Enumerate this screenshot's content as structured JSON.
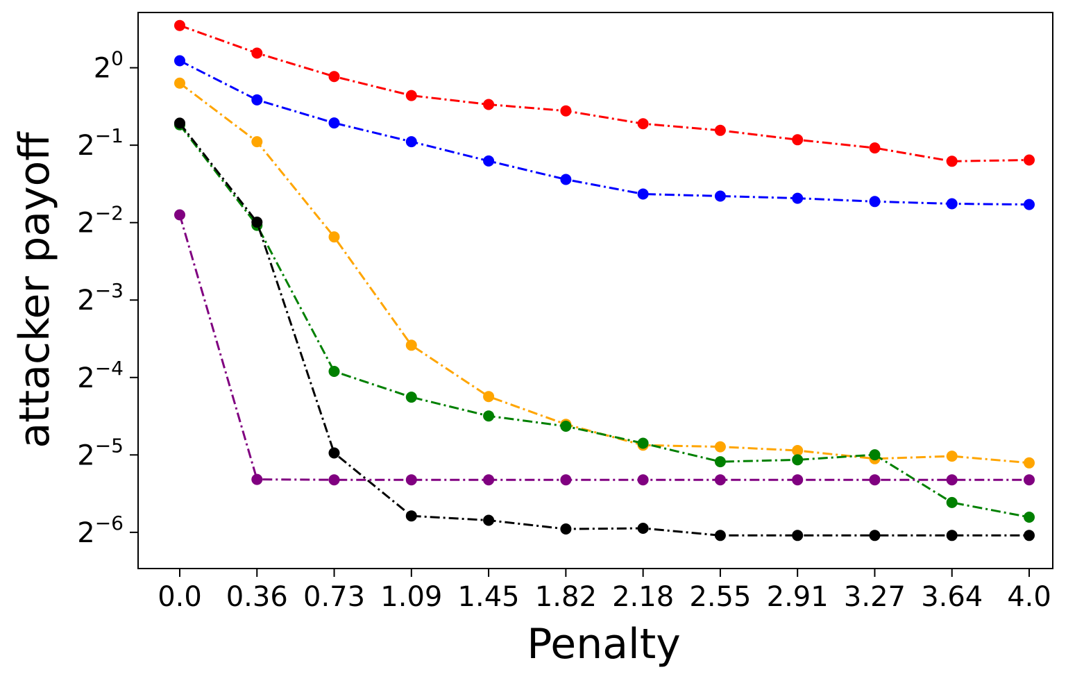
{
  "chart_data": {
    "type": "line",
    "xlabel": "Penalty",
    "ylabel": "attacker payoff",
    "x_tick_labels": [
      "0.0",
      "0.36",
      "0.73",
      "1.09",
      "1.45",
      "1.82",
      "2.18",
      "2.55",
      "2.91",
      "3.27",
      "3.64",
      "4.0"
    ],
    "x": [
      0.0,
      0.36,
      0.73,
      1.09,
      1.45,
      1.82,
      2.18,
      2.55,
      2.91,
      3.27,
      3.64,
      4.0
    ],
    "y_scale": "log2",
    "y_ticks": [
      {
        "base": "2",
        "exp": "0",
        "value": 1
      },
      {
        "base": "2",
        "exp": "−1",
        "value": 0.5
      },
      {
        "base": "2",
        "exp": "−2",
        "value": 0.25
      },
      {
        "base": "2",
        "exp": "−3",
        "value": 0.125
      },
      {
        "base": "2",
        "exp": "−4",
        "value": 0.0625
      },
      {
        "base": "2",
        "exp": "−5",
        "value": 0.03125
      },
      {
        "base": "2",
        "exp": "−6",
        "value": 0.015625
      }
    ],
    "ylim": [
      0.0113,
      1.64
    ],
    "grid": false,
    "line_style": "dash-dot",
    "marker": "circle",
    "series": [
      {
        "color": "#ff0000",
        "values": [
          1.46,
          1.14,
          0.925,
          0.78,
          0.72,
          0.68,
          0.606,
          0.571,
          0.525,
          0.488,
          0.433,
          0.438
        ]
      },
      {
        "color": "#0000ff",
        "values": [
          1.065,
          0.75,
          0.61,
          0.516,
          0.434,
          0.368,
          0.323,
          0.317,
          0.311,
          0.302,
          0.296,
          0.294
        ]
      },
      {
        "color": "#ffa500",
        "values": [
          0.871,
          0.516,
          0.22,
          0.0834,
          0.0527,
          0.0411,
          0.0341,
          0.0336,
          0.0325,
          0.0302,
          0.0309,
          0.0291
        ]
      },
      {
        "color": "#008000",
        "values": [
          0.6,
          0.244,
          0.066,
          0.0524,
          0.0443,
          0.0404,
          0.0347,
          0.0294,
          0.0299,
          0.0313,
          0.0204,
          0.0179
        ]
      },
      {
        "color": "#000000",
        "values": [
          0.609,
          0.251,
          0.0318,
          0.0181,
          0.0174,
          0.0161,
          0.0162,
          0.0152,
          0.0152,
          0.0152,
          0.0152,
          0.0152
        ]
      },
      {
        "color": "#800080",
        "values": [
          0.268,
          0.0251,
          0.025,
          0.025,
          0.025,
          0.025,
          0.025,
          0.025,
          0.025,
          0.025,
          0.025,
          0.025
        ]
      }
    ]
  }
}
